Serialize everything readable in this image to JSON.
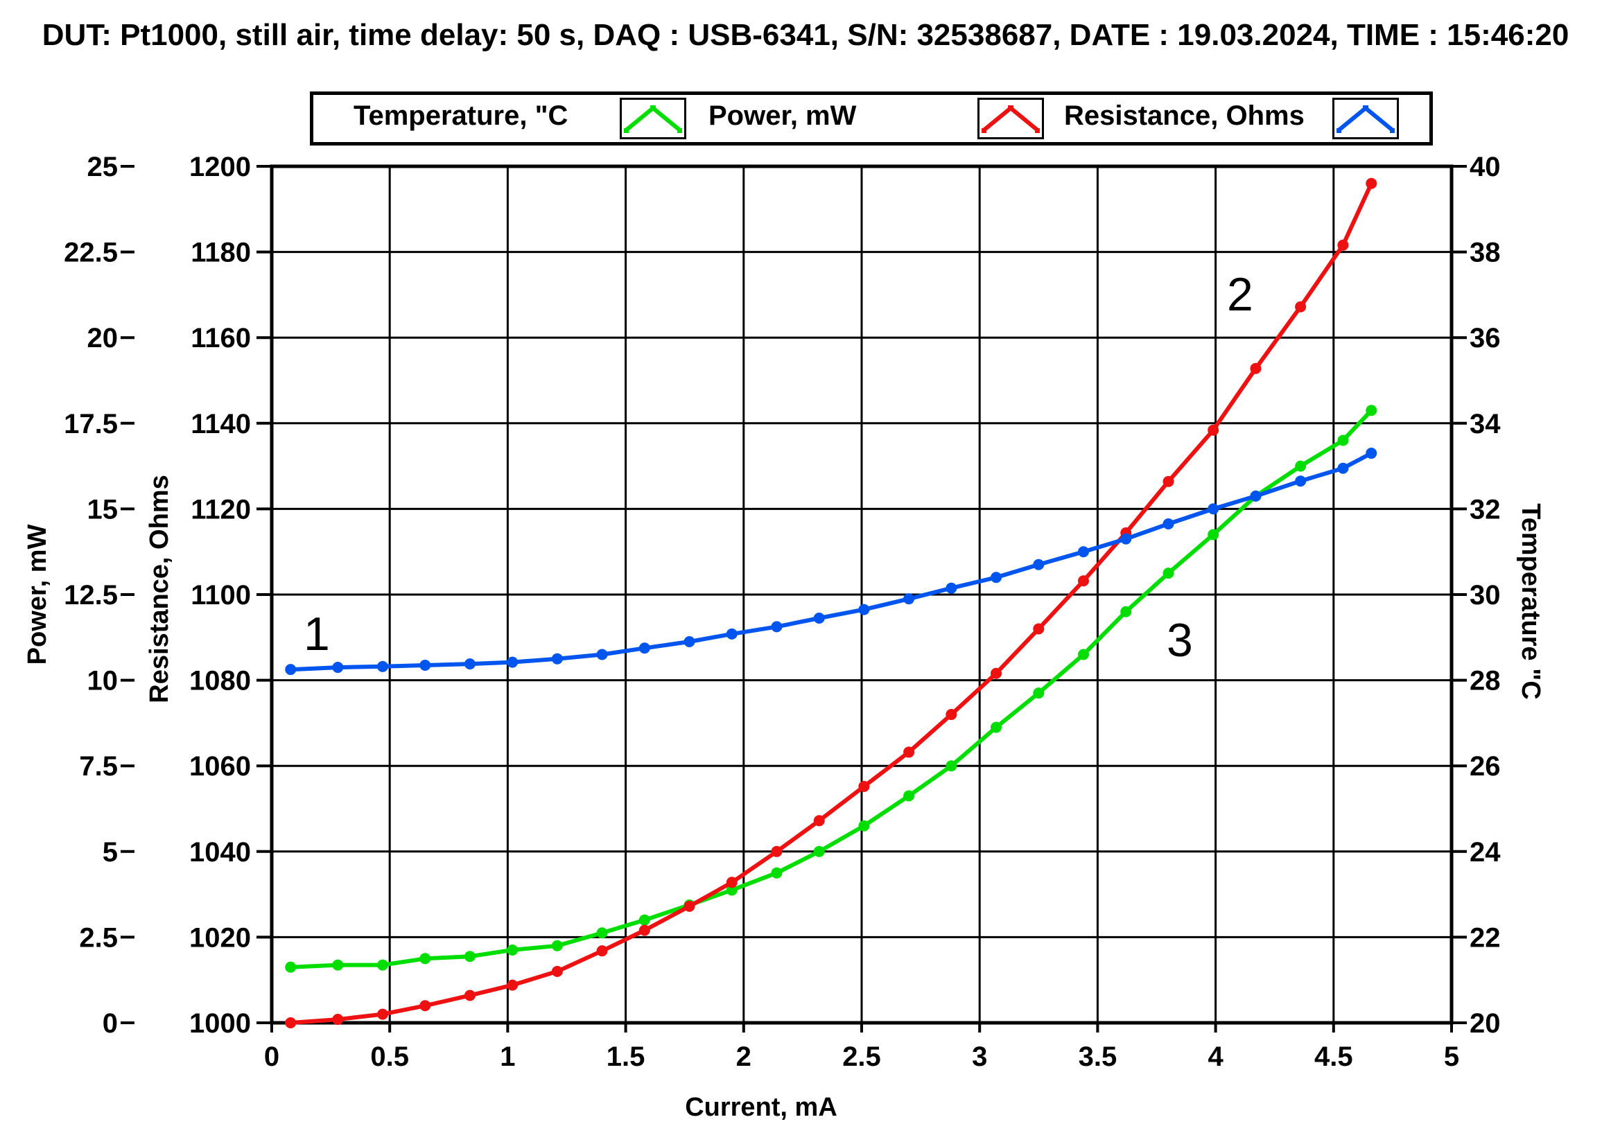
{
  "chart_data": {
    "type": "line",
    "title": "DUT: Pt1000, still air, time delay: 50 s, DAQ : USB-6341,  S/N: 32538687, DATE : 19.03.2024, TIME : 15:46:20",
    "xlabel": "Current, mA",
    "xlim": [
      0,
      5
    ],
    "x_ticks": [
      "0",
      "0.5",
      "1",
      "1.5",
      "2",
      "2.5",
      "3",
      "3.5",
      "4",
      "4.5",
      "5"
    ],
    "grid": true,
    "legend_position": "top",
    "axes": {
      "power": {
        "label": "Power, mW",
        "side": "left-outer",
        "range": [
          0,
          25
        ],
        "ticks": [
          "0",
          "2.5",
          "5",
          "7.5",
          "10",
          "12.5",
          "15",
          "17.5",
          "20",
          "22.5",
          "25"
        ]
      },
      "resistance": {
        "label": "Resistance, Ohms",
        "side": "left-inner",
        "range": [
          1000,
          1200
        ],
        "ticks": [
          "1000",
          "1020",
          "1040",
          "1060",
          "1080",
          "1100",
          "1120",
          "1140",
          "1160",
          "1180",
          "1200"
        ]
      },
      "temperature": {
        "label": "Temperature \"C",
        "side": "right",
        "range": [
          20,
          40
        ],
        "ticks": [
          "20",
          "22",
          "24",
          "26",
          "28",
          "30",
          "32",
          "34",
          "36",
          "38",
          "40"
        ]
      }
    },
    "series": [
      {
        "name": "Temperature, \"C",
        "axis": "temperature",
        "color": "#00dd00",
        "curve_label": "3",
        "x": [
          0.08,
          0.28,
          0.47,
          0.65,
          0.84,
          1.02,
          1.21,
          1.4,
          1.58,
          1.77,
          1.95,
          2.14,
          2.32,
          2.51,
          2.7,
          2.88,
          3.07,
          3.25,
          3.44,
          3.62,
          3.8,
          3.99,
          4.17,
          4.36,
          4.54,
          4.66
        ],
        "y": [
          21.3,
          21.35,
          21.35,
          21.5,
          21.55,
          21.7,
          21.8,
          22.1,
          22.4,
          22.75,
          23.1,
          23.5,
          24.0,
          24.6,
          25.3,
          26.0,
          26.9,
          27.7,
          28.6,
          29.6,
          30.5,
          31.4,
          32.3,
          33.0,
          33.6,
          34.3
        ]
      },
      {
        "name": "Power, mW",
        "axis": "power",
        "color": "#ee1111",
        "curve_label": "2",
        "x": [
          0.08,
          0.28,
          0.47,
          0.65,
          0.84,
          1.02,
          1.21,
          1.4,
          1.58,
          1.77,
          1.95,
          2.14,
          2.32,
          2.51,
          2.7,
          2.88,
          3.07,
          3.25,
          3.44,
          3.62,
          3.8,
          3.99,
          4.17,
          4.36,
          4.54,
          4.66
        ],
        "y": [
          0.0,
          0.1,
          0.25,
          0.5,
          0.8,
          1.1,
          1.5,
          2.1,
          2.7,
          3.4,
          4.1,
          5.0,
          5.9,
          6.9,
          7.9,
          9.0,
          10.2,
          11.5,
          12.9,
          14.3,
          15.8,
          17.3,
          19.1,
          20.9,
          22.7,
          24.5
        ]
      },
      {
        "name": "Resistance, Ohms",
        "axis": "resistance",
        "color": "#0055ee",
        "curve_label": "1",
        "x": [
          0.08,
          0.28,
          0.47,
          0.65,
          0.84,
          1.02,
          1.21,
          1.4,
          1.58,
          1.77,
          1.95,
          2.14,
          2.32,
          2.51,
          2.7,
          2.88,
          3.07,
          3.25,
          3.44,
          3.62,
          3.8,
          3.99,
          4.17,
          4.36,
          4.54,
          4.66
        ],
        "y": [
          1082.5,
          1083.0,
          1083.2,
          1083.5,
          1083.8,
          1084.2,
          1085.0,
          1086.0,
          1087.5,
          1089.0,
          1090.8,
          1092.5,
          1094.5,
          1096.5,
          1099.0,
          1101.5,
          1104.0,
          1107.0,
          1110.0,
          1113.0,
          1116.5,
          1120.0,
          1123.0,
          1126.5,
          1129.5,
          1133.0
        ]
      }
    ]
  }
}
